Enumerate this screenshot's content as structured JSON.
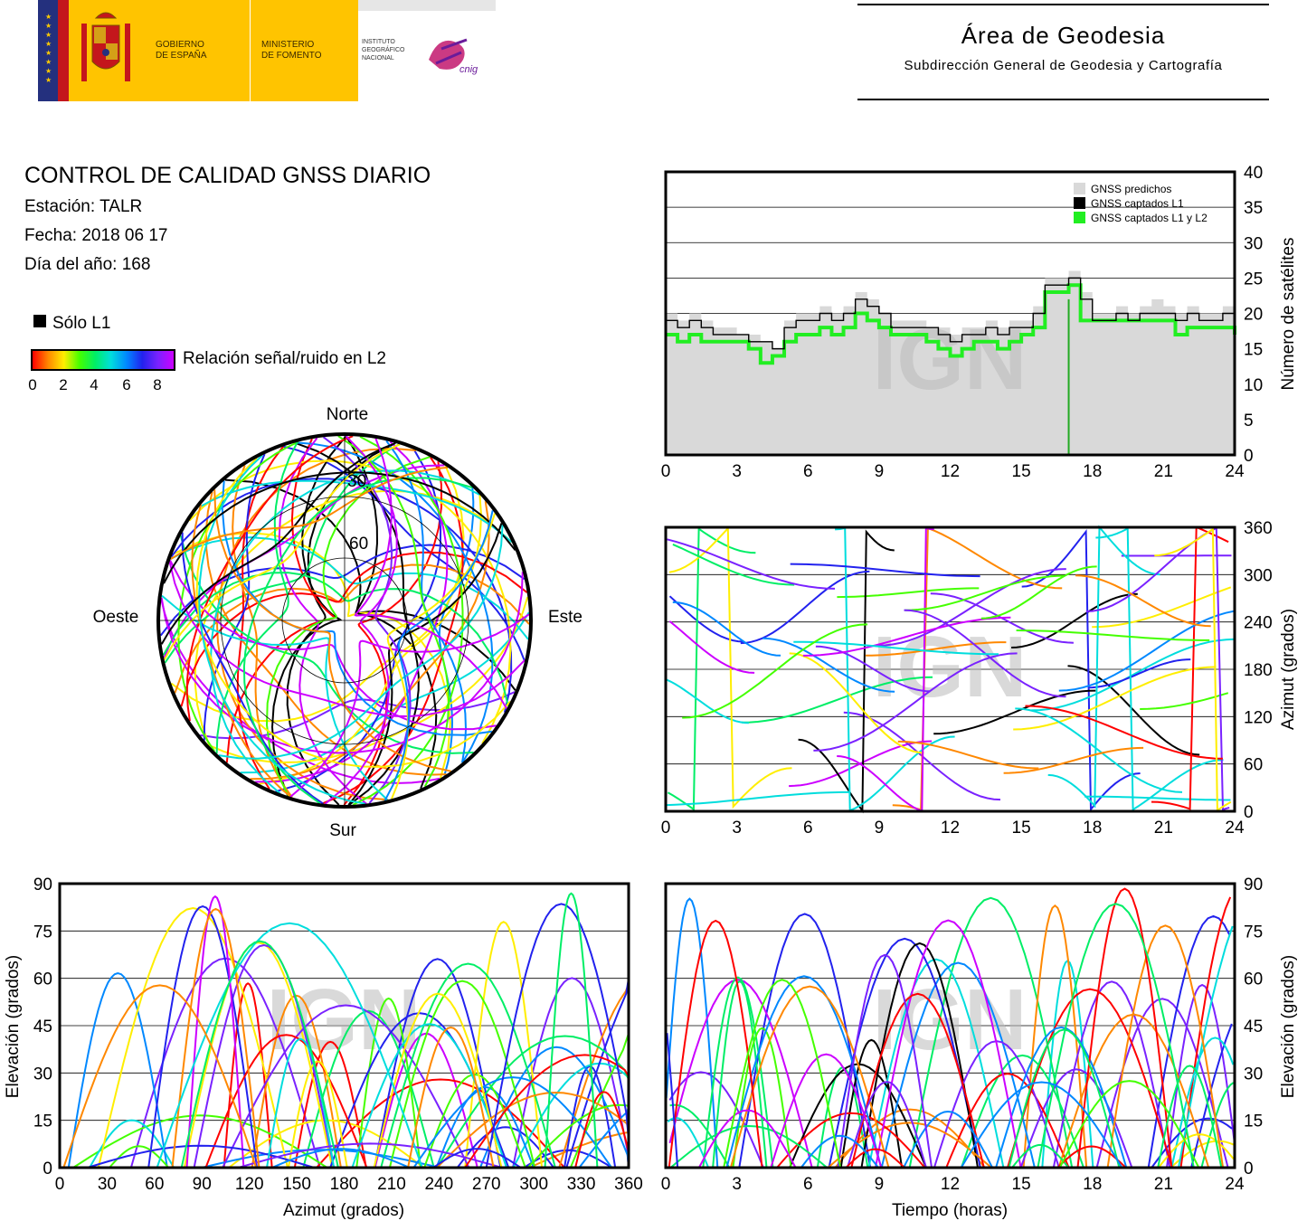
{
  "header": {
    "gov_line1": "GOBIERNO",
    "gov_line2": "DE ESPAÑA",
    "ministry_line1": "MINISTERIO",
    "ministry_line2": "DE FOMENTO",
    "ign_line1": "INSTITUTO",
    "ign_line2": "GEOGRÁFICO",
    "ign_line3": "NACIONAL",
    "cnig": "cnig",
    "area_title": "Área de Geodesia",
    "area_subtitle": "Subdirección General de Geodesia y Cartografía",
    "colors": {
      "spain_red": "#c4161c",
      "spain_yellow": "#ffc400",
      "eu_blue": "#24307e",
      "cnig_magenta": "#c2186d"
    }
  },
  "report": {
    "title": "CONTROL DE CALIDAD GNSS DIARIO",
    "station": "Estación: TALR",
    "date": "Fecha: 2018 06 17",
    "doy": "Día del año: 168"
  },
  "legend": {
    "l1_only": "Sólo L1",
    "snr_label": "Relación señal/ruido en L2",
    "snr_ticks": [
      "0",
      "2",
      "4",
      "6",
      "8"
    ],
    "snr_colors": [
      "#ff0000",
      "#ff8800",
      "#ffee00",
      "#44ff00",
      "#00ee66",
      "#00dddd",
      "#0088ff",
      "#2222ee",
      "#7a22ff",
      "#cc00ff"
    ]
  },
  "watermark": "IGN",
  "chart_data": [
    {
      "id": "satellite-count",
      "type": "area",
      "xlabel": "",
      "ylabel": "Número de satélites",
      "xlim": [
        0,
        24
      ],
      "ylim": [
        0,
        40
      ],
      "xticks": [
        "0",
        "3",
        "6",
        "9",
        "12",
        "15",
        "18",
        "21",
        "24"
      ],
      "yticks": [
        "0",
        "5",
        "10",
        "15",
        "20",
        "25",
        "30",
        "35",
        "40"
      ],
      "grid": "horizontal",
      "legend_position": "top-right",
      "x": [
        0,
        0.5,
        1,
        1.5,
        2,
        2.5,
        3,
        3.5,
        4,
        4.5,
        5,
        5.5,
        6,
        6.5,
        7,
        7.5,
        8,
        8.5,
        9,
        9.5,
        10,
        10.5,
        11,
        11.5,
        12,
        12.5,
        13,
        13.5,
        14,
        14.5,
        15,
        15.5,
        16,
        16.5,
        17,
        17.5,
        18,
        18.5,
        19,
        19.5,
        20,
        20.5,
        21,
        21.5,
        22,
        22.5,
        23,
        23.5,
        24
      ],
      "series": [
        {
          "name": "GNSS predichos",
          "color": "#d9d9d9",
          "values": [
            20,
            19,
            20,
            19,
            18,
            18,
            17,
            17,
            16,
            15,
            19,
            20,
            20,
            21,
            20,
            21,
            23,
            22,
            20,
            19,
            19,
            19,
            18,
            18,
            17,
            18,
            18,
            19,
            18,
            19,
            19,
            21,
            25,
            25,
            26,
            23,
            20,
            20,
            21,
            20,
            21,
            22,
            21,
            20,
            21,
            20,
            20,
            21,
            20
          ]
        },
        {
          "name": "GNSS captados L1",
          "color": "#000000",
          "values": [
            19,
            18,
            19,
            18,
            17,
            17,
            17,
            16,
            16,
            15,
            18,
            19,
            19,
            20,
            19,
            20,
            22,
            21,
            20,
            18,
            18,
            18,
            18,
            17,
            16,
            17,
            17,
            18,
            17,
            18,
            18,
            20,
            24,
            24,
            25,
            22,
            19,
            19,
            20,
            19,
            20,
            20,
            20,
            19,
            20,
            19,
            19,
            20,
            19
          ]
        },
        {
          "name": "GNSS captados L1 y L2",
          "color": "#22ee22",
          "values": [
            17,
            16,
            17,
            16,
            16,
            16,
            16,
            15,
            13,
            14,
            16,
            17,
            17,
            18,
            17,
            18,
            20,
            19,
            18,
            17,
            17,
            17,
            16,
            15,
            14,
            15,
            16,
            16,
            15,
            16,
            17,
            18,
            23,
            23,
            24,
            19,
            19,
            19,
            19,
            19,
            19,
            19,
            19,
            17,
            18,
            18,
            18,
            18,
            17
          ]
        }
      ],
      "annotations": [
        {
          "x": 17.0,
          "y": 0,
          "note": "green drop to 0"
        }
      ]
    },
    {
      "id": "skyplot",
      "type": "scatter",
      "title": "",
      "directions": {
        "north": "Norte",
        "south": "Sur",
        "west": "Oeste",
        "east": "Este"
      },
      "rings": [
        "30",
        "60"
      ],
      "color_encoding": "snr_l2"
    },
    {
      "id": "azimuth-vs-time",
      "type": "line",
      "ylabel": "Azimut (grados)",
      "xlim": [
        0,
        24
      ],
      "ylim": [
        0,
        360
      ],
      "xticks": [
        "0",
        "3",
        "6",
        "9",
        "12",
        "15",
        "18",
        "21",
        "24"
      ],
      "yticks": [
        "0",
        "60",
        "120",
        "180",
        "240",
        "300",
        "360"
      ],
      "color_encoding": "snr_l2"
    },
    {
      "id": "elevation-vs-azimuth",
      "type": "line",
      "xlabel": "Azimut (grados)",
      "ylabel": "Elevación (grados)",
      "xlim": [
        0,
        360
      ],
      "ylim": [
        0,
        90
      ],
      "xticks": [
        "0",
        "30",
        "60",
        "90",
        "120",
        "150",
        "180",
        "210",
        "240",
        "270",
        "300",
        "330",
        "360"
      ],
      "yticks": [
        "0",
        "15",
        "30",
        "45",
        "60",
        "75",
        "90"
      ],
      "color_encoding": "snr_l2"
    },
    {
      "id": "elevation-vs-time",
      "type": "line",
      "xlabel": "Tiempo (horas)",
      "ylabel": "Elevación (grados)",
      "xlim": [
        0,
        24
      ],
      "ylim": [
        0,
        90
      ],
      "xticks": [
        "0",
        "3",
        "6",
        "9",
        "12",
        "15",
        "18",
        "21",
        "24"
      ],
      "yticks": [
        "0",
        "15",
        "30",
        "45",
        "60",
        "75",
        "90"
      ],
      "color_encoding": "snr_l2"
    }
  ]
}
